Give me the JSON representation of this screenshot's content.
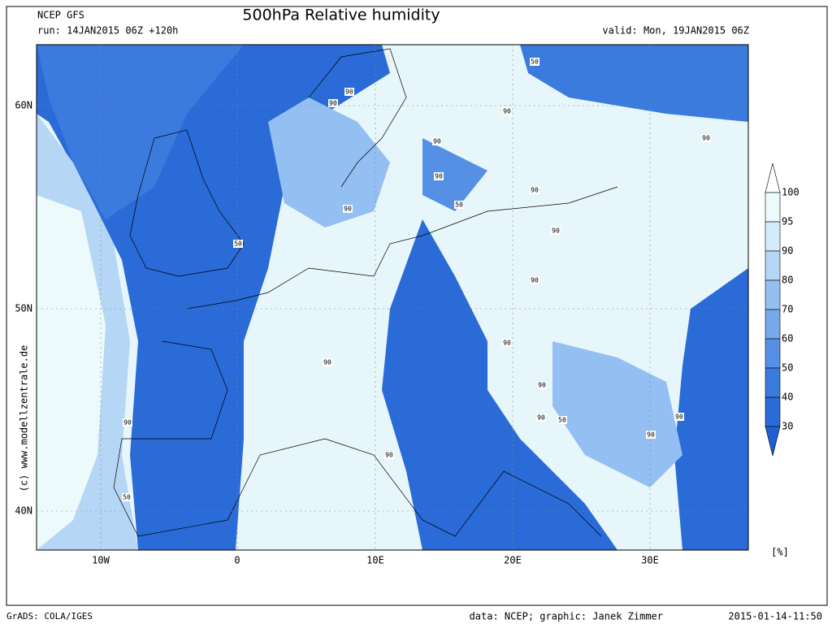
{
  "header": {
    "model": "NCEP GFS",
    "run": "run: 14JAN2015 06Z +120h",
    "title": "500hPa Relative humidity",
    "valid": "valid: Mon, 19JAN2015 06Z"
  },
  "map": {
    "lat_labels": [
      "60N",
      "50N",
      "40N"
    ],
    "lon_labels": [
      "10W",
      "0",
      "10E",
      "20E",
      "30E"
    ],
    "contour_labels": [
      90,
      90,
      50,
      90,
      90,
      90,
      90,
      50,
      90,
      50,
      90,
      90,
      90,
      90,
      90,
      90,
      90,
      50,
      90,
      90,
      90,
      50,
      90
    ],
    "watermark": "(c) www.modellzentrale.de"
  },
  "colorbar": {
    "levels": [
      100,
      95,
      90,
      80,
      70,
      60,
      50,
      40,
      30
    ],
    "colors": [
      "#ffffff",
      "#ecfafc",
      "#d4ebfa",
      "#b6d6f6",
      "#94bff2",
      "#76a8ec",
      "#5690e5",
      "#3b7bde",
      "#2a6bd7",
      "#1f5fd1"
    ],
    "unit": "[%]"
  },
  "footer": {
    "software": "GrADS: COLA/IGES",
    "credit": "data: NCEP; graphic: Janek Zimmer",
    "timestamp": "2015-01-14-11:50"
  }
}
